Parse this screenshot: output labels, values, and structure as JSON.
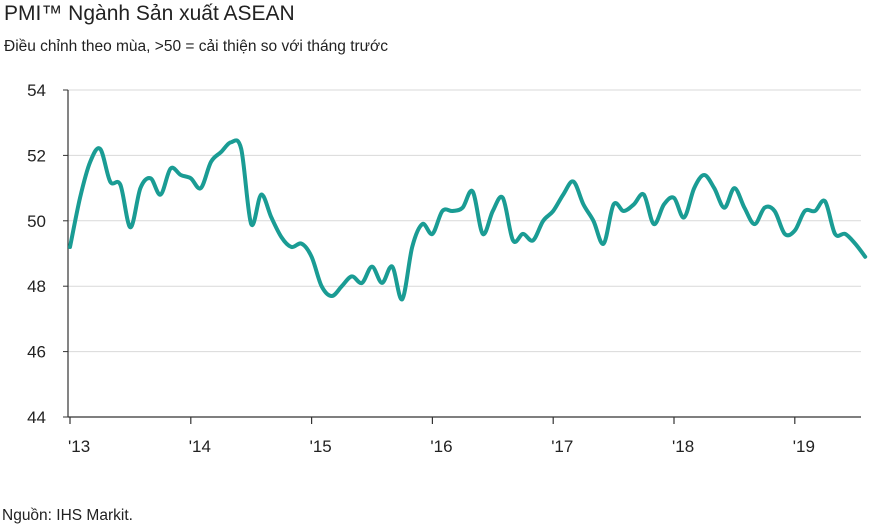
{
  "title": "PMI™ Ngành Sản xuất ASEAN",
  "subtitle": "Điều chỉnh theo mùa, >50 = cải thiện so với tháng trước",
  "source": "Nguồn: IHS Markit.",
  "colors": {
    "line": "#1a9c94",
    "grid": "#d9d9d9",
    "axis": "#333333"
  },
  "chart_data": {
    "type": "line",
    "title": "PMI™ Ngành Sản xuất ASEAN",
    "xlabel": "",
    "ylabel": "",
    "ylim": [
      44,
      54
    ],
    "xlim": [
      2013.0,
      2019.6
    ],
    "y_ticks": [
      44,
      46,
      48,
      50,
      52,
      54
    ],
    "x_ticks": [
      {
        "value": 2013,
        "label": "'13"
      },
      {
        "value": 2014,
        "label": "'14"
      },
      {
        "value": 2015,
        "label": "'15"
      },
      {
        "value": 2016,
        "label": "'16"
      },
      {
        "value": 2017,
        "label": "'17"
      },
      {
        "value": 2018,
        "label": "'18"
      },
      {
        "value": 2019,
        "label": "'19"
      }
    ],
    "grid": true,
    "series": [
      {
        "name": "PMI ASEAN",
        "x": [
          2013.0,
          2013.083,
          2013.167,
          2013.25,
          2013.333,
          2013.417,
          2013.5,
          2013.583,
          2013.667,
          2013.75,
          2013.833,
          2013.917,
          2014.0,
          2014.083,
          2014.167,
          2014.25,
          2014.333,
          2014.417,
          2014.5,
          2014.583,
          2014.667,
          2014.75,
          2014.833,
          2014.917,
          2015.0,
          2015.083,
          2015.167,
          2015.25,
          2015.333,
          2015.417,
          2015.5,
          2015.583,
          2015.667,
          2015.75,
          2015.833,
          2015.917,
          2016.0,
          2016.083,
          2016.167,
          2016.25,
          2016.333,
          2016.417,
          2016.5,
          2016.583,
          2016.667,
          2016.75,
          2016.833,
          2016.917,
          2017.0,
          2017.083,
          2017.167,
          2017.25,
          2017.333,
          2017.417,
          2017.5,
          2017.583,
          2017.667,
          2017.75,
          2017.833,
          2017.917,
          2018.0,
          2018.083,
          2018.167,
          2018.25,
          2018.333,
          2018.417,
          2018.5,
          2018.583,
          2018.667,
          2018.75,
          2018.833,
          2018.917,
          2019.0,
          2019.083,
          2019.167,
          2019.25,
          2019.333,
          2019.417,
          2019.5,
          2019.583
        ],
        "values": [
          49.2,
          50.7,
          51.8,
          52.2,
          51.2,
          51.1,
          49.8,
          51.0,
          51.3,
          50.8,
          51.6,
          51.4,
          51.3,
          51.0,
          51.8,
          52.1,
          52.4,
          52.2,
          49.9,
          50.8,
          50.1,
          49.5,
          49.2,
          49.3,
          48.9,
          48.0,
          47.7,
          48.0,
          48.3,
          48.1,
          48.6,
          48.1,
          48.6,
          47.6,
          49.2,
          49.9,
          49.6,
          50.3,
          50.3,
          50.4,
          50.9,
          49.6,
          50.3,
          50.7,
          49.4,
          49.6,
          49.4,
          50.0,
          50.3,
          50.8,
          51.2,
          50.5,
          50.0,
          49.3,
          50.5,
          50.3,
          50.5,
          50.8,
          49.9,
          50.5,
          50.7,
          50.1,
          51.0,
          51.4,
          51.0,
          50.4,
          51.0,
          50.4,
          49.9,
          50.4,
          50.3,
          49.6,
          49.7,
          50.3,
          50.3,
          50.6,
          49.6,
          49.6,
          49.3,
          48.9
        ]
      }
    ]
  }
}
